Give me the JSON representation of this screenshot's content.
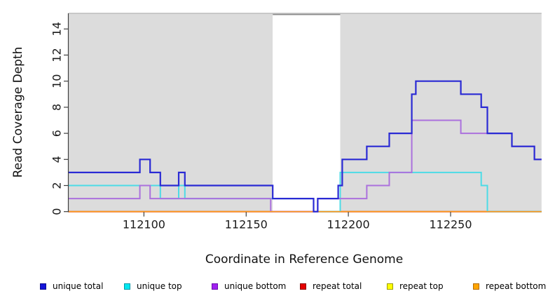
{
  "chart_data": {
    "type": "line",
    "step": true,
    "title": "",
    "xlabel": "Coordinate in Reference Genome",
    "ylabel": "Read Coverage Depth",
    "xlim": [
      112063,
      112294.5
    ],
    "ylim": [
      0,
      15.2
    ],
    "x_ticks": [
      112100,
      112150,
      112200,
      112250
    ],
    "y_ticks": [
      0,
      2,
      4,
      6,
      8,
      10,
      12,
      14
    ],
    "grid": false,
    "plot_bg_color": "#dcdcdc",
    "highlight_band": {
      "x_start": 112163,
      "x_end": 112196,
      "color": "#ffffff"
    },
    "series": [
      {
        "name": "unique total",
        "color": "#2a2ad4",
        "line_width": 2.2,
        "steps": [
          [
            112063,
            3
          ],
          [
            112098,
            4
          ],
          [
            112103,
            3
          ],
          [
            112108,
            2
          ],
          [
            112117,
            3
          ],
          [
            112120,
            2
          ],
          [
            112163,
            1
          ],
          [
            112183,
            0
          ],
          [
            112185,
            1
          ],
          [
            112195,
            2
          ],
          [
            112197,
            4
          ],
          [
            112209,
            5
          ],
          [
            112220,
            6
          ],
          [
            112231,
            9
          ],
          [
            112233,
            10
          ],
          [
            112255,
            9
          ],
          [
            112265,
            8
          ],
          [
            112268,
            6
          ],
          [
            112280,
            5
          ],
          [
            112291,
            4
          ]
        ]
      },
      {
        "name": "unique top",
        "color": "#4cdbe6",
        "line_width": 2,
        "steps": [
          [
            112063,
            2
          ],
          [
            112108,
            1
          ],
          [
            112117,
            2
          ],
          [
            112120,
            1
          ],
          [
            112183,
            0
          ],
          [
            112196,
            3
          ],
          [
            112265,
            2
          ],
          [
            112268,
            0
          ]
        ]
      },
      {
        "name": "unique bottom",
        "color": "#ab71dd",
        "line_width": 2,
        "steps": [
          [
            112063,
            1
          ],
          [
            112098,
            2
          ],
          [
            112103,
            1
          ],
          [
            112162,
            0
          ],
          [
            112185,
            1
          ],
          [
            112209,
            2
          ],
          [
            112220,
            3
          ],
          [
            112231,
            7
          ],
          [
            112255,
            6
          ],
          [
            112280,
            5
          ],
          [
            112291,
            4
          ]
        ]
      },
      {
        "name": "repeat total",
        "color": "#dd2222",
        "line_width": 2,
        "steps": [
          [
            112063,
            0
          ]
        ]
      },
      {
        "name": "repeat top",
        "color": "#f0e622",
        "line_width": 1.7,
        "steps": [
          [
            112063,
            0
          ]
        ]
      },
      {
        "name": "repeat bottom",
        "color": "#ff9d1e",
        "line_width": 1.5,
        "steps": [
          [
            112063,
            0
          ]
        ]
      }
    ],
    "legend": [
      {
        "label": "unique total",
        "fill": "#1414d9",
        "border": "#0b0b8f"
      },
      {
        "label": "unique top",
        "fill": "#00e8f0",
        "border": "#0097a7"
      },
      {
        "label": "unique bottom",
        "fill": "#a020f0",
        "border": "#6a0dad"
      },
      {
        "label": "repeat total",
        "fill": "#e60000",
        "border": "#8b0000"
      },
      {
        "label": "repeat top",
        "fill": "#ffff00",
        "border": "#9a9a00"
      },
      {
        "label": "repeat bottom",
        "fill": "#ffa500",
        "border": "#b36b00"
      }
    ],
    "legend_position": "bottom"
  }
}
